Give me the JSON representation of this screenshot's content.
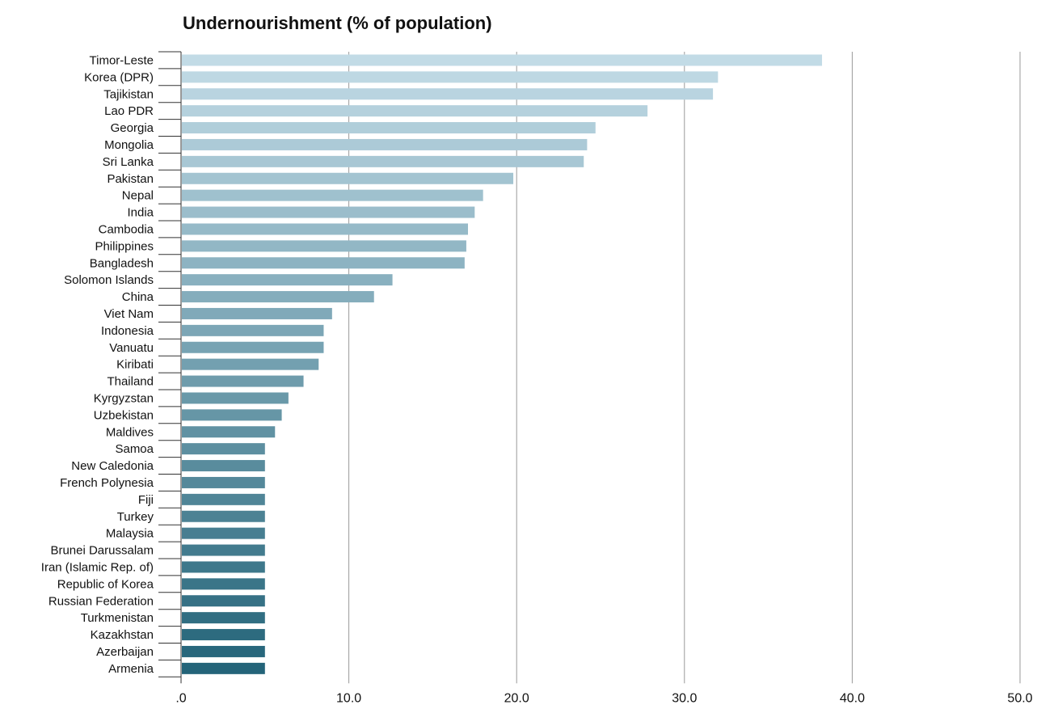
{
  "chart_data": {
    "type": "bar",
    "orientation": "horizontal",
    "title": "Undernourishment (% of population)",
    "xlabel": "",
    "ylabel": "",
    "xlim": [
      0,
      50
    ],
    "x_ticks": [
      ".0",
      "10.0",
      "20.0",
      "30.0",
      "40.0",
      "50.0"
    ],
    "x_tick_values": [
      0,
      10,
      20,
      30,
      40,
      50
    ],
    "grid": "vertical",
    "legend": "none",
    "color_gradient": [
      "#c2dbe6",
      "#246479"
    ],
    "categories": [
      "Timor-Leste",
      "Korea (DPR)",
      "Tajikistan",
      "Lao PDR",
      "Georgia",
      "Mongolia",
      "Sri Lanka",
      "Pakistan",
      "Nepal",
      "India",
      "Cambodia",
      "Philippines",
      "Bangladesh",
      "Solomon Islands",
      "China",
      "Viet Nam",
      "Indonesia",
      "Vanuatu",
      "Kiribati",
      "Thailand",
      "Kyrgyzstan",
      "Uzbekistan",
      "Maldives",
      "Samoa",
      "New Caledonia",
      "French Polynesia",
      "Fiji",
      "Turkey",
      "Malaysia",
      "Brunei Darussalam",
      "Iran (Islamic Rep. of)",
      "Republic of Korea",
      "Russian Federation",
      "Turkmenistan",
      "Kazakhstan",
      "Azerbaijan",
      "Armenia"
    ],
    "values": [
      38.2,
      32.0,
      31.7,
      27.8,
      24.7,
      24.2,
      24.0,
      19.8,
      18.0,
      17.5,
      17.1,
      17.0,
      16.9,
      12.6,
      11.5,
      9.0,
      8.5,
      8.5,
      8.2,
      7.3,
      6.4,
      6.0,
      5.6,
      5.0,
      5.0,
      5.0,
      5.0,
      5.0,
      5.0,
      5.0,
      5.0,
      5.0,
      5.0,
      5.0,
      5.0,
      5.0,
      5.0
    ]
  }
}
